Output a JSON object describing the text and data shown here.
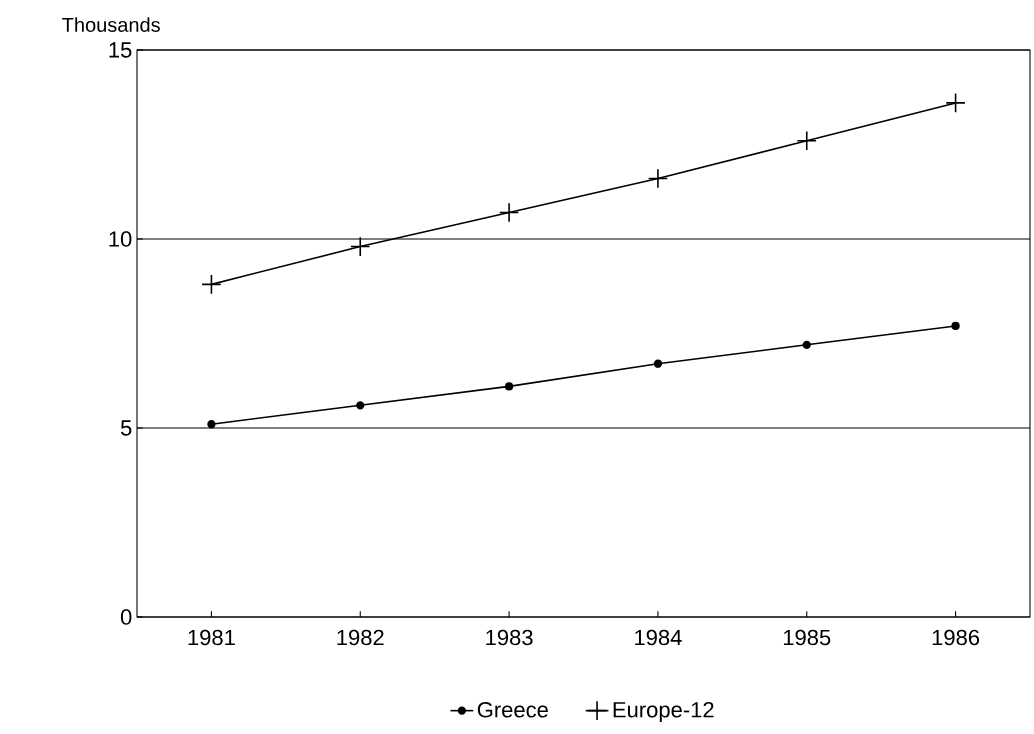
{
  "chart_data": {
    "type": "line",
    "ylabel": "Thousands",
    "categories": [
      "1981",
      "1982",
      "1983",
      "1984",
      "1985",
      "1986"
    ],
    "series": [
      {
        "name": "Greece",
        "color": "#000000",
        "marker": "circle",
        "values": [
          5.1,
          5.6,
          6.1,
          6.7,
          7.2,
          7.7
        ]
      },
      {
        "name": "Europe-12",
        "color": "#000000",
        "marker": "cross",
        "values": [
          8.8,
          9.8,
          10.7,
          11.6,
          12.6,
          13.6
        ]
      }
    ],
    "ylim": [
      0,
      15
    ],
    "yticks": [
      0,
      5,
      10,
      15
    ],
    "grid": "y",
    "legend": "bottom",
    "line_style": "solid"
  }
}
